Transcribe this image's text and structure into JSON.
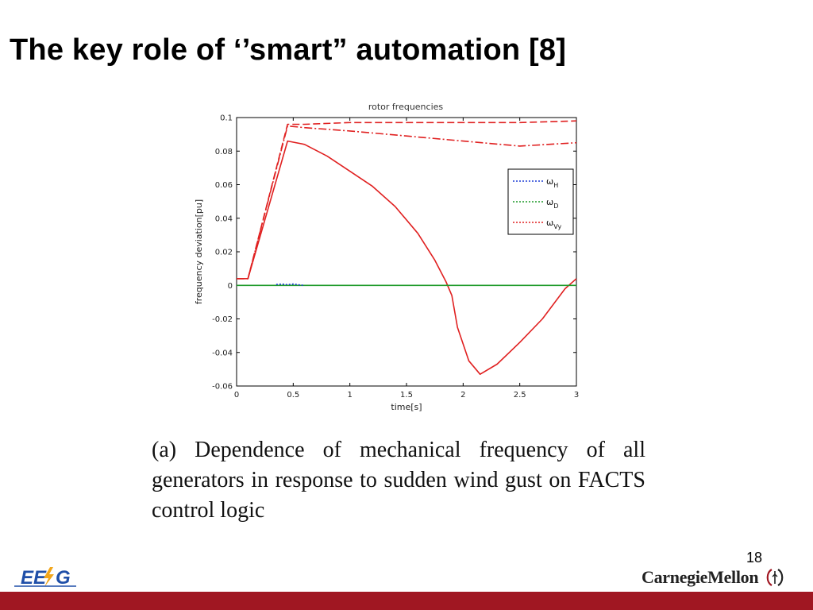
{
  "slide": {
    "title": "The key role of ‘’smart” automation [8]",
    "caption": "(a) Dependence of mechanical frequency of all generators in response to sudden wind gust on FACTS control logic",
    "page_number": "18",
    "footer_color": "#a01722",
    "logo_left": "EE⚡G",
    "logo_right": "CarnegieMellon"
  },
  "chart_data": {
    "type": "line",
    "title": "rotor frequencies",
    "xlabel": "time[s]",
    "ylabel": "frequency deviation[pu]",
    "xlim": [
      0,
      3
    ],
    "ylim": [
      -0.06,
      0.1
    ],
    "xticks": [
      0,
      0.5,
      1,
      1.5,
      2,
      2.5,
      3
    ],
    "xtick_labels": [
      "0",
      "0.5",
      "1",
      "1.5",
      "2",
      "2.5",
      "3"
    ],
    "yticks": [
      -0.06,
      -0.04,
      -0.02,
      0,
      0.02,
      0.04,
      0.06,
      0.08,
      0.1
    ],
    "ytick_labels": [
      "-0.06",
      "-0.04",
      "-0.02",
      "0",
      "0.02",
      "0.04",
      "0.06",
      "0.08",
      "0.1"
    ],
    "grid": false,
    "legend_position": "right",
    "legend": [
      {
        "label": "ω",
        "sub": "H",
        "color": "#1f3fd6"
      },
      {
        "label": "ω",
        "sub": "D",
        "color": "#1e9a2a"
      },
      {
        "label": "ω",
        "sub": "Vy",
        "color": "#e02020"
      }
    ],
    "series": [
      {
        "style": "solid",
        "color": "#e02020",
        "x": [
          0,
          0.1,
          0.45,
          0.6,
          0.8,
          1.0,
          1.2,
          1.4,
          1.6,
          1.75,
          1.85,
          1.9,
          1.95,
          2.05,
          2.15,
          2.3,
          2.5,
          2.7,
          2.9,
          3.0
        ],
        "y": [
          0.004,
          0.004,
          0.086,
          0.084,
          0.077,
          0.068,
          0.059,
          0.047,
          0.031,
          0.015,
          0.002,
          -0.006,
          -0.025,
          -0.045,
          -0.053,
          -0.047,
          -0.034,
          -0.02,
          -0.002,
          0.004
        ]
      },
      {
        "style": "dashed",
        "color": "#e02020",
        "x": [
          0,
          0.1,
          0.45,
          0.6,
          1.0,
          1.5,
          2.0,
          2.5,
          3.0
        ],
        "y": [
          0.004,
          0.004,
          0.096,
          0.096,
          0.097,
          0.097,
          0.097,
          0.097,
          0.098
        ]
      },
      {
        "style": "dashdot",
        "color": "#e02020",
        "x": [
          0,
          0.1,
          0.45,
          0.6,
          1.0,
          1.5,
          2.0,
          2.5,
          3.0
        ],
        "y": [
          0.004,
          0.004,
          0.095,
          0.094,
          0.092,
          0.089,
          0.086,
          0.083,
          0.085
        ]
      },
      {
        "style": "solid",
        "color": "#1e9a2a",
        "x": [
          0,
          0.5,
          1.0,
          1.5,
          2.0,
          2.5,
          3.0
        ],
        "y": [
          0.0,
          0.0,
          0.0,
          0.0,
          0.0,
          0.0,
          0.0
        ]
      },
      {
        "style": "dotted",
        "color": "#1f3fd6",
        "x": [
          0.35,
          0.4,
          0.45,
          0.5,
          0.55,
          0.6
        ],
        "y": [
          0.0005,
          0.0008,
          0.0004,
          0.0008,
          0.0003,
          0.0
        ]
      }
    ]
  }
}
